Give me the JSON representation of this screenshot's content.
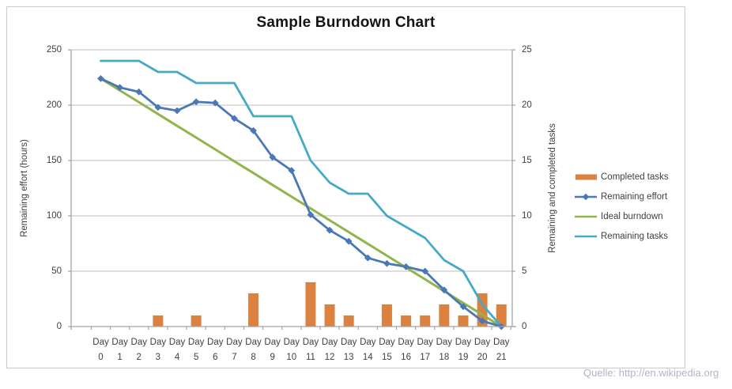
{
  "title": "Sample Burndown Chart",
  "watermark": "Quelle: http://en.wikipedia.org",
  "axes": {
    "left": {
      "title": "Remaining effort (hours)",
      "ticks": [
        250,
        200,
        150,
        100,
        50,
        0
      ]
    },
    "right": {
      "title": "Remaining and completed tasks",
      "ticks": [
        25,
        20,
        15,
        10,
        5,
        0
      ]
    }
  },
  "legend": {
    "items": [
      {
        "label": "Completed tasks",
        "swatch": "bar",
        "color": "#db8240"
      },
      {
        "label": "Remaining effort",
        "swatch": "line-marker",
        "color": "#4a78b5"
      },
      {
        "label": "Ideal burndown",
        "swatch": "line",
        "color": "#92b44c"
      },
      {
        "label": "Remaining tasks",
        "swatch": "line",
        "color": "#44aac5"
      }
    ]
  },
  "colors": {
    "bar_orange": "#db8240",
    "effort_blue": "#4a78b5",
    "ideal_green": "#92b44c",
    "tasks_teal": "#44aac5",
    "gridline": "#c9c9c9",
    "axis_line": "#a3a3a3",
    "tick_text": "#3f3f3f",
    "watermark_text": "#b0b5c6"
  },
  "chart_data": {
    "type": "combo",
    "title": "Sample Burndown Chart",
    "categories": [
      "Day 0",
      "Day 1",
      "Day 2",
      "Day 3",
      "Day 4",
      "Day 5",
      "Day 6",
      "Day 7",
      "Day 8",
      "Day 9",
      "Day 10",
      "Day 11",
      "Day 12",
      "Day 13",
      "Day 14",
      "Day 15",
      "Day 16",
      "Day 17",
      "Day 18",
      "Day 19",
      "Day 20",
      "Day 21"
    ],
    "ylabel_left": "Remaining effort (hours)",
    "ylabel_right": "Remaining and completed tasks",
    "ylim_left": [
      0,
      250
    ],
    "ylim_right": [
      0,
      25
    ],
    "grid": "horizontal",
    "legend_position": "right",
    "series": [
      {
        "name": "Completed tasks",
        "type": "bar",
        "axis": "right",
        "values": [
          0,
          0,
          0,
          1,
          0,
          1,
          0,
          0,
          3,
          0,
          0,
          4,
          2,
          1,
          0,
          2,
          1,
          1,
          2,
          1,
          3,
          2
        ]
      },
      {
        "name": "Remaining effort",
        "type": "line",
        "axis": "left",
        "marker": "diamond",
        "values": [
          224,
          216,
          212,
          198,
          195,
          203,
          202,
          188,
          177,
          153,
          141,
          101,
          87,
          77,
          62,
          57,
          54,
          50,
          33,
          18,
          5,
          0
        ]
      },
      {
        "name": "Ideal burndown",
        "type": "line",
        "axis": "left",
        "values": [
          224,
          213.3,
          202.7,
          192,
          181.3,
          170.7,
          160,
          149.3,
          138.7,
          128,
          117.3,
          106.7,
          96,
          85.3,
          74.7,
          64,
          53.3,
          42.7,
          32,
          21.3,
          10.7,
          0
        ]
      },
      {
        "name": "Remaining tasks",
        "type": "line",
        "axis": "right",
        "values": [
          24,
          24,
          24,
          23,
          23,
          22,
          22,
          22,
          19,
          19,
          19,
          15,
          13,
          12,
          12,
          10,
          9,
          8,
          6,
          5,
          2,
          0
        ]
      }
    ]
  }
}
